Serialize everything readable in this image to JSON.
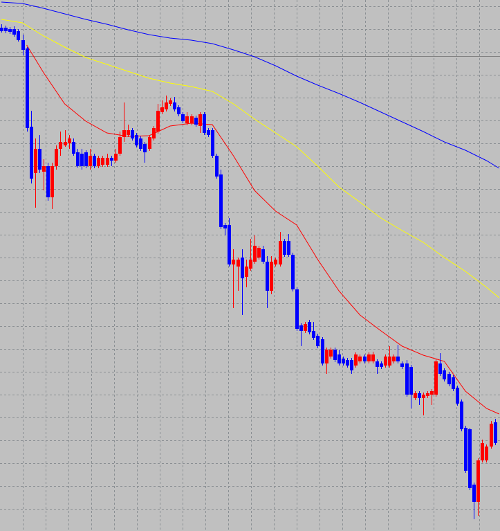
{
  "chart_data": {
    "type": "candlestick",
    "background": "#c0c0c0",
    "grid": true,
    "grid_color": "#8a8f93",
    "up_color": "#ff0000",
    "down_color": "#0000ff",
    "xlim": [
      -0.33,
      118.2
    ],
    "ylim": [
      0,
      767
    ],
    "xticks": [
      5.1,
      10.5,
      15.9,
      21.3,
      26.7,
      32.1,
      37.5,
      43.0,
      48.4,
      53.8,
      59.2,
      64.6,
      70.0,
      75.4,
      80.8,
      86.2,
      91.6,
      97.0,
      102.5,
      107.9,
      113.3
    ],
    "yticks": [
      32,
      65,
      98,
      131,
      164,
      197,
      230,
      263,
      296,
      329,
      362,
      395,
      428,
      461,
      494,
      527,
      560,
      593,
      626,
      659,
      692,
      725,
      758
    ],
    "price_line": {
      "value": 686,
      "color": "#808080"
    },
    "x": [
      0,
      1,
      2,
      3,
      4,
      5,
      6,
      7,
      8,
      9,
      10,
      11,
      12,
      13,
      14,
      15,
      16,
      17,
      18,
      19,
      20,
      21,
      22,
      23,
      24,
      25,
      26,
      27,
      28,
      29,
      30,
      31,
      32,
      33,
      34,
      35,
      36,
      37,
      38,
      39,
      40,
      41,
      42,
      43,
      44,
      45,
      46,
      47,
      48,
      49,
      50,
      51,
      52,
      53,
      54,
      55,
      56,
      57,
      58,
      59,
      60,
      61,
      62,
      63,
      64,
      65,
      66,
      67,
      68,
      69,
      70,
      71,
      72,
      73,
      74,
      75,
      76,
      77,
      78,
      79,
      80,
      81,
      82,
      83,
      84,
      85,
      86,
      87,
      88,
      89,
      90,
      91,
      92,
      93,
      94,
      95,
      96,
      97,
      98,
      99,
      100,
      101,
      102,
      103,
      104,
      105,
      106,
      107,
      108,
      109,
      110,
      111,
      112,
      113,
      114,
      115,
      116,
      117
    ],
    "open": [
      727,
      727,
      725,
      725,
      722,
      709,
      697,
      584,
      517,
      552,
      519,
      527,
      482,
      527,
      552,
      557,
      560,
      562,
      547,
      545,
      547,
      527,
      542,
      527,
      529,
      529,
      539,
      535,
      545,
      569,
      572,
      579,
      572,
      567,
      559,
      552,
      567,
      577,
      605,
      609,
      617,
      619,
      612,
      602,
      589,
      589,
      597,
      585,
      602,
      579,
      579,
      542,
      515,
      442,
      442,
      385,
      382,
      395,
      367,
      379,
      389,
      395,
      407,
      389,
      347,
      385,
      385,
      419,
      419,
      399,
      349,
      297,
      289,
      302,
      289,
      282,
      277,
      242,
      252,
      262,
      255,
      249,
      247,
      247,
      239,
      245,
      252,
      245,
      245,
      245,
      242,
      239,
      239,
      245,
      252,
      242,
      242,
      237,
      192,
      199,
      192,
      195,
      197,
      197,
      242,
      232,
      227,
      222,
      207,
      187,
      149,
      147,
      67,
      42,
      102,
      102,
      122,
      157
    ],
    "high": [
      732,
      730,
      728,
      729,
      725,
      717,
      699,
      607,
      567,
      572,
      537,
      532,
      532,
      557,
      577,
      579,
      572,
      567,
      552,
      552,
      550,
      552,
      545,
      542,
      542,
      545,
      542,
      552,
      577,
      619,
      587,
      582,
      575,
      570,
      562,
      572,
      585,
      617,
      622,
      629,
      625,
      627,
      615,
      605,
      605,
      602,
      600,
      605,
      605,
      582,
      582,
      545,
      522,
      445,
      452,
      407,
      395,
      407,
      392,
      422,
      427,
      412,
      412,
      397,
      397,
      395,
      432,
      422,
      429,
      402,
      352,
      300,
      302,
      305,
      302,
      285,
      280,
      265,
      265,
      265,
      262,
      252,
      250,
      250,
      258,
      255,
      255,
      258,
      259,
      248,
      245,
      255,
      267,
      255,
      269,
      245,
      247,
      240,
      202,
      202,
      200,
      202,
      205,
      249,
      257,
      235,
      230,
      225,
      210,
      190,
      152,
      149,
      70,
      105,
      132,
      125,
      159,
      162
    ],
    "low": [
      720,
      719,
      718,
      714,
      707,
      687,
      577,
      502,
      467,
      517,
      492,
      477,
      465,
      522,
      542,
      555,
      552,
      542,
      525,
      522,
      524,
      522,
      524,
      524,
      526,
      526,
      527,
      532,
      542,
      562,
      569,
      564,
      554,
      549,
      532,
      549,
      564,
      574,
      602,
      606,
      614,
      606,
      599,
      589,
      586,
      586,
      584,
      575,
      572,
      569,
      539,
      509,
      436,
      427,
      382,
      322,
      347,
      312,
      352,
      376,
      386,
      392,
      386,
      322,
      342,
      382,
      382,
      396,
      396,
      346,
      289,
      267,
      286,
      284,
      276,
      264,
      239,
      227,
      249,
      244,
      239,
      239,
      236,
      227,
      236,
      242,
      242,
      242,
      242,
      227,
      234,
      236,
      236,
      242,
      242,
      234,
      194,
      177,
      189,
      182,
      167,
      192,
      182,
      194,
      224,
      216,
      209,
      202,
      181,
      144,
      84,
      59,
      17,
      22,
      99,
      99,
      119,
      124
    ],
    "close": [
      722,
      722,
      721,
      717,
      709,
      695,
      582,
      509,
      552,
      522,
      527,
      482,
      527,
      552,
      562,
      562,
      567,
      545,
      527,
      527,
      527,
      542,
      527,
      539,
      539,
      539,
      535,
      545,
      569,
      579,
      579,
      567,
      557,
      552,
      547,
      569,
      582,
      607,
      612,
      619,
      622,
      609,
      602,
      592,
      599,
      599,
      587,
      602,
      575,
      572,
      542,
      512,
      439,
      437,
      385,
      392,
      392,
      365,
      382,
      392,
      412,
      409,
      389,
      347,
      389,
      392,
      419,
      399,
      399,
      349,
      292,
      289,
      299,
      287,
      279,
      267,
      242,
      262,
      262,
      247,
      242,
      242,
      239,
      232,
      255,
      252,
      245,
      255,
      255,
      237,
      237,
      252,
      252,
      252,
      245,
      237,
      197,
      197,
      199,
      192,
      197,
      199,
      202,
      245,
      227,
      219,
      212,
      205,
      184,
      147,
      87,
      62,
      42,
      102,
      127,
      122,
      155,
      127
    ],
    "lines": [
      {
        "color": "#ff0000",
        "x": [
          6,
          10,
          15,
          20,
          25,
          30,
          35,
          40,
          45,
          50,
          55,
          60,
          65,
          70,
          75,
          80,
          85,
          90,
          95,
          100,
          105,
          110,
          115,
          118
        ],
        "values": [
          702,
          662,
          617,
          592,
          575,
          570,
          571,
          585,
          589,
          587,
          542,
          492,
          462,
          442,
          392,
          347,
          312,
          289,
          267,
          254,
          245,
          202,
          177,
          169
        ]
      },
      {
        "color": "#ffff00",
        "x": [
          0,
          5,
          10,
          15,
          20,
          25,
          30,
          35,
          40,
          45,
          50,
          55,
          60,
          65,
          70,
          75,
          80,
          85,
          90,
          95,
          100,
          105,
          110,
          115,
          118
        ],
        "values": [
          739,
          734,
          715,
          699,
          684,
          674,
          664,
          654,
          647,
          642,
          635,
          617,
          595,
          575,
          555,
          527,
          497,
          475,
          452,
          434,
          417,
          395,
          375,
          352,
          337
        ]
      },
      {
        "color": "#0000ff",
        "x": [
          0,
          5,
          10,
          15,
          20,
          25,
          30,
          35,
          40,
          45,
          50,
          55,
          60,
          65,
          70,
          75,
          80,
          85,
          90,
          95,
          100,
          105,
          110,
          115,
          118
        ],
        "values": [
          764,
          762,
          755,
          747,
          739,
          732,
          724,
          717,
          712,
          709,
          704,
          695,
          685,
          672,
          657,
          644,
          632,
          619,
          605,
          591,
          577,
          562,
          550,
          535,
          524
        ]
      }
    ]
  }
}
